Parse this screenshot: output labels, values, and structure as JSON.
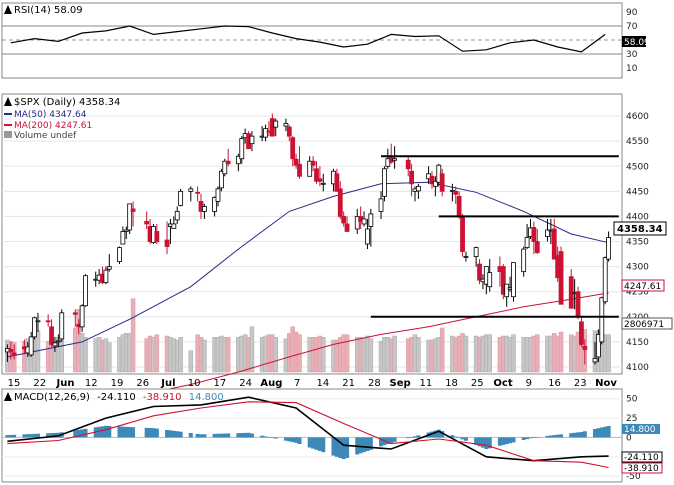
{
  "chart_data": [
    {
      "type": "line",
      "panel": "rsi",
      "label": "RSI(14) 58.09",
      "last_value_label": "58.09",
      "ylim": [
        0,
        100
      ],
      "y_ticks": [
        "90",
        "70",
        "50",
        "30",
        "10"
      ],
      "reference_lines": [
        70,
        50,
        30
      ],
      "series": [
        {
          "color": "#000000",
          "x": [
            "2023-05-11",
            "2023-05-18",
            "2023-05-25",
            "2023-06-01",
            "2023-06-08",
            "2023-06-15",
            "2023-06-22",
            "2023-06-29",
            "2023-07-06",
            "2023-07-13",
            "2023-07-20",
            "2023-07-27",
            "2023-08-03",
            "2023-08-10",
            "2023-08-17",
            "2023-08-24",
            "2023-08-31",
            "2023-09-07",
            "2023-09-14",
            "2023-09-21",
            "2023-09-28",
            "2023-10-05",
            "2023-10-12",
            "2023-10-19",
            "2023-10-26",
            "2023-11-02"
          ],
          "values": [
            46,
            52,
            48,
            60,
            63,
            70,
            58,
            62,
            66,
            70,
            69,
            60,
            52,
            47,
            40,
            44,
            58,
            55,
            56,
            34,
            36,
            46,
            50,
            40,
            33,
            58
          ]
        }
      ]
    },
    {
      "type": "candlestick",
      "panel": "price",
      "label": "$SPX (Daily) 4358.34",
      "last_price_label": "4358.34",
      "ylim": [
        4090,
        4640
      ],
      "y_ticks": [
        "4600",
        "4550",
        "4500",
        "4450",
        "4400",
        "4350",
        "4300",
        "4250",
        "4200",
        "4150",
        "4100"
      ],
      "x_tick_labels": [
        "15",
        "22",
        "Jun",
        "12",
        "19",
        "26",
        "Jul",
        "10",
        "17",
        "24",
        "Aug",
        "7",
        "14",
        "21",
        "28",
        "Sep",
        "11",
        "18",
        "25",
        "Oct",
        "9",
        "16",
        "23",
        "Nov"
      ],
      "legend": [
        {
          "label": "MA(50) 4347.64",
          "color": "#2a2a8c"
        },
        {
          "label": "MA(200) 4247.61",
          "color": "#cc1133"
        },
        {
          "label": "Volume undef",
          "color": "#888888"
        }
      ],
      "value_labels": {
        "ma50": "4347.64",
        "ma200": "4247.61",
        "volume": "2806971"
      },
      "horizontal_levels": [
        {
          "y": 4520,
          "from": "2023-08-28",
          "to": "2023-11-06"
        },
        {
          "y": 4400,
          "from": "2023-09-14",
          "to": "2023-11-06"
        },
        {
          "y": 4200,
          "from": "2023-08-25",
          "to": "2023-11-06"
        }
      ],
      "candles": {
        "x": [
          "2023-05-10",
          "2023-05-11",
          "2023-05-12",
          "2023-05-15",
          "2023-05-16",
          "2023-05-17",
          "2023-05-18",
          "2023-05-19",
          "2023-05-22",
          "2023-05-23",
          "2023-05-24",
          "2023-05-25",
          "2023-05-26",
          "2023-05-30",
          "2023-05-31",
          "2023-06-01",
          "2023-06-02",
          "2023-06-05",
          "2023-06-06",
          "2023-06-07",
          "2023-06-08",
          "2023-06-09",
          "2023-06-12",
          "2023-06-13",
          "2023-06-14",
          "2023-06-15",
          "2023-06-16",
          "2023-06-20",
          "2023-06-21",
          "2023-06-22",
          "2023-06-23",
          "2023-06-26",
          "2023-06-27",
          "2023-06-28",
          "2023-06-29",
          "2023-06-30",
          "2023-07-03",
          "2023-07-05",
          "2023-07-06",
          "2023-07-07",
          "2023-07-10",
          "2023-07-11",
          "2023-07-12",
          "2023-07-13",
          "2023-07-14",
          "2023-07-17",
          "2023-07-18",
          "2023-07-19",
          "2023-07-20",
          "2023-07-21",
          "2023-07-24",
          "2023-07-25",
          "2023-07-26",
          "2023-07-27",
          "2023-07-28",
          "2023-07-31",
          "2023-08-01",
          "2023-08-02",
          "2023-08-03",
          "2023-08-04",
          "2023-08-07",
          "2023-08-08",
          "2023-08-09",
          "2023-08-10",
          "2023-08-11",
          "2023-08-14",
          "2023-08-15",
          "2023-08-16",
          "2023-08-17",
          "2023-08-18",
          "2023-08-21",
          "2023-08-22",
          "2023-08-23",
          "2023-08-24",
          "2023-08-25",
          "2023-08-28",
          "2023-08-29",
          "2023-08-30",
          "2023-08-31",
          "2023-09-01",
          "2023-09-05",
          "2023-09-06",
          "2023-09-07",
          "2023-09-08",
          "2023-09-11",
          "2023-09-12",
          "2023-09-13",
          "2023-09-14",
          "2023-09-15",
          "2023-09-18",
          "2023-09-19",
          "2023-09-20",
          "2023-09-21",
          "2023-09-22",
          "2023-09-25",
          "2023-09-26",
          "2023-09-27",
          "2023-09-28",
          "2023-09-29",
          "2023-10-02",
          "2023-10-03",
          "2023-10-04",
          "2023-10-05",
          "2023-10-06",
          "2023-10-09",
          "2023-10-10",
          "2023-10-11",
          "2023-10-12",
          "2023-10-13",
          "2023-10-16",
          "2023-10-17",
          "2023-10-18",
          "2023-10-19",
          "2023-10-20",
          "2023-10-23",
          "2023-10-24",
          "2023-10-25",
          "2023-10-26",
          "2023-10-27",
          "2023-10-30",
          "2023-10-31",
          "2023-11-01",
          "2023-11-02",
          "2023-11-03"
        ],
        "open": [
          4130,
          4135,
          4128,
          4140,
          4128,
          4124,
          4160,
          4190,
          4192,
          4180,
          4142,
          4150,
          4156,
          4208,
          4185,
          4180,
          4222,
          4274,
          4273,
          4285,
          4268,
          4295,
          4310,
          4345,
          4370,
          4373,
          4415,
          4390,
          4380,
          4348,
          4370,
          4353,
          4380,
          4376,
          4393,
          4422,
          4450,
          4448,
          4430,
          4410,
          4410,
          4430,
          4457,
          4485,
          4510,
          4505,
          4515,
          4557,
          4565,
          4545,
          4560,
          4558,
          4570,
          4595,
          4578,
          4580,
          4578,
          4557,
          4514,
          4504,
          4480,
          4510,
          4495,
          4475,
          4465,
          4465,
          4485,
          4455,
          4400,
          4385,
          4375,
          4400,
          4385,
          4345,
          4380,
          4410,
          4440,
          4500,
          4520,
          4512,
          4512,
          4490,
          4450,
          4451,
          4475,
          4480,
          4460,
          4468,
          4485,
          4450,
          4450,
          4440,
          4400,
          4320,
          4320,
          4305,
          4270,
          4265,
          4260,
          4300,
          4300,
          4240,
          4255,
          4240,
          4290,
          4338,
          4360,
          4378,
          4350,
          4360,
          4373,
          4375,
          4322,
          4330,
          4280,
          4247,
          4250,
          4190,
          4141,
          4110,
          4120,
          4150,
          4230,
          4315
        ],
        "high": [
          4145,
          4150,
          4145,
          4155,
          4150,
          4170,
          4200,
          4208,
          4205,
          4195,
          4160,
          4165,
          4215,
          4215,
          4195,
          4225,
          4285,
          4290,
          4295,
          4300,
          4300,
          4325,
          4340,
          4380,
          4380,
          4425,
          4430,
          4410,
          4395,
          4385,
          4385,
          4390,
          4395,
          4400,
          4420,
          4455,
          4460,
          4460,
          4445,
          4425,
          4440,
          4460,
          4495,
          4515,
          4535,
          4525,
          4560,
          4575,
          4570,
          4570,
          4580,
          4583,
          4590,
          4605,
          4595,
          4595,
          4582,
          4560,
          4525,
          4540,
          4520,
          4520,
          4510,
          4500,
          4485,
          4495,
          4495,
          4470,
          4410,
          4400,
          4415,
          4420,
          4410,
          4395,
          4415,
          4450,
          4500,
          4535,
          4545,
          4540,
          4520,
          4505,
          4460,
          4465,
          4500,
          4490,
          4480,
          4505,
          4495,
          4465,
          4460,
          4450,
          4405,
          4330,
          4340,
          4315,
          4285,
          4285,
          4315,
          4320,
          4305,
          4265,
          4280,
          4300,
          4340,
          4385,
          4395,
          4390,
          4375,
          4395,
          4395,
          4395,
          4340,
          4340,
          4295,
          4275,
          4260,
          4200,
          4155,
          4150,
          4175,
          4240,
          4320,
          4370
        ],
        "low": [
          4110,
          4115,
          4115,
          4125,
          4120,
          4120,
          4155,
          4170,
          4180,
          4140,
          4130,
          4140,
          4150,
          4180,
          4165,
          4170,
          4220,
          4260,
          4265,
          4265,
          4265,
          4290,
          4305,
          4345,
          4355,
          4365,
          4380,
          4375,
          4345,
          4345,
          4345,
          4325,
          4345,
          4375,
          4385,
          4420,
          4430,
          4430,
          4395,
          4395,
          4400,
          4420,
          4450,
          4480,
          4500,
          4490,
          4505,
          4545,
          4535,
          4530,
          4550,
          4550,
          4560,
          4565,
          4560,
          4570,
          4550,
          4500,
          4495,
          4475,
          4480,
          4490,
          4465,
          4460,
          4450,
          4450,
          4450,
          4395,
          4380,
          4370,
          4365,
          4375,
          4380,
          4335,
          4340,
          4395,
          4430,
          4495,
          4505,
          4495,
          4480,
          4440,
          4430,
          4435,
          4465,
          4455,
          4440,
          4460,
          4440,
          4430,
          4425,
          4395,
          4320,
          4310,
          4300,
          4265,
          4255,
          4245,
          4250,
          4260,
          4235,
          4220,
          4250,
          4230,
          4280,
          4335,
          4355,
          4325,
          4325,
          4350,
          4345,
          4315,
          4270,
          4245,
          4220,
          4215,
          4195,
          4140,
          4105,
          4105,
          4110,
          4145,
          4225,
          4310
        ],
        "close": [
          4137,
          4130,
          4124,
          4136,
          4140,
          4160,
          4198,
          4192,
          4190,
          4145,
          4148,
          4152,
          4208,
          4205,
          4180,
          4222,
          4282,
          4275,
          4283,
          4268,
          4293,
          4300,
          4338,
          4370,
          4373,
          4425,
          4410,
          4385,
          4350,
          4380,
          4350,
          4340,
          4385,
          4385,
          4410,
          4450,
          4455,
          4447,
          4410,
          4420,
          4438,
          4455,
          4490,
          4510,
          4505,
          4520,
          4555,
          4565,
          4535,
          4560,
          4560,
          4575,
          4568,
          4560,
          4590,
          4585,
          4560,
          4515,
          4502,
          4480,
          4510,
          4502,
          4470,
          4470,
          4466,
          4490,
          4450,
          4400,
          4387,
          4370,
          4400,
          4390,
          4395,
          4375,
          4405,
          4435,
          4495,
          4515,
          4508,
          4515,
          4495,
          4465,
          4455,
          4460,
          4485,
          4465,
          4470,
          4502,
          4450,
          4452,
          4444,
          4400,
          4330,
          4320,
          4338,
          4273,
          4275,
          4300,
          4288,
          4290,
          4245,
          4265,
          4258,
          4308,
          4335,
          4358,
          4377,
          4350,
          4328,
          4373,
          4373,
          4315,
          4278,
          4225,
          4217,
          4248,
          4200,
          4145,
          4135,
          4117,
          4165,
          4238,
          4318,
          4358
        ]
      },
      "volume": {
        "unit": "shares",
        "values": [
          2.4,
          2.3,
          2.2,
          2.3,
          2.5,
          2.4,
          2.6,
          3.1,
          2.3,
          2.5,
          2.3,
          2.6,
          2.8,
          3.3,
          4.7,
          2.9,
          2.6,
          2.5,
          2.6,
          2.4,
          2.5,
          2.2,
          2.6,
          2.8,
          2.9,
          2.9,
          5.5,
          2.5,
          2.7,
          2.6,
          2.8,
          2.7,
          2.6,
          2.5,
          2.4,
          2.6,
          1.6,
          2.8,
          2.6,
          2.4,
          2.6,
          2.6,
          2.7,
          2.6,
          2.6,
          2.6,
          2.7,
          2.8,
          2.6,
          3.4,
          2.6,
          2.7,
          2.8,
          2.8,
          2.6,
          2.5,
          2.9,
          3.4,
          3.0,
          2.8,
          2.6,
          2.6,
          2.6,
          2.7,
          2.6,
          2.4,
          2.4,
          2.6,
          2.8,
          2.8,
          2.6,
          2.6,
          2.5,
          2.7,
          2.5,
          2.3,
          2.6,
          2.6,
          2.5,
          2.7,
          2.5,
          2.6,
          2.8,
          2.6,
          2.4,
          2.4,
          2.5,
          2.6,
          3.3,
          2.7,
          2.6,
          2.7,
          2.9,
          2.7,
          2.7,
          2.6,
          2.7,
          2.8,
          2.8,
          2.6,
          2.7,
          2.7,
          2.6,
          2.8,
          2.6,
          2.6,
          2.6,
          2.7,
          2.8,
          2.7,
          2.7,
          2.9,
          2.7,
          3.0,
          2.8,
          2.7,
          3.0,
          3.1,
          3.2,
          3.1,
          3.1,
          2.9,
          2.8,
          2.8
        ]
      },
      "moving_averages": {
        "ma50": {
          "x": [
            "2023-05-10",
            "2023-06-01",
            "2023-06-15",
            "2023-07-03",
            "2023-07-17",
            "2023-08-01",
            "2023-08-14",
            "2023-08-28",
            "2023-09-11",
            "2023-09-25",
            "2023-10-09",
            "2023-10-23",
            "2023-11-03"
          ],
          "values": [
            4120,
            4150,
            4195,
            4260,
            4335,
            4410,
            4440,
            4465,
            4468,
            4448,
            4410,
            4365,
            4347.64
          ]
        },
        "ma200": {
          "x": [
            "2023-05-10",
            "2023-06-01",
            "2023-06-15",
            "2023-07-03",
            "2023-07-17",
            "2023-08-01",
            "2023-08-14",
            "2023-08-28",
            "2023-09-11",
            "2023-09-25",
            "2023-10-09",
            "2023-10-23",
            "2023-11-03"
          ],
          "values": [
            4010,
            4020,
            4040,
            4065,
            4090,
            4120,
            4145,
            4165,
            4180,
            4200,
            4220,
            4235,
            4247.61
          ]
        }
      }
    },
    {
      "type": "line",
      "panel": "macd",
      "label": "MACD(12,26,9)",
      "label_values": [
        "-24.110",
        "-38.910",
        "14.800"
      ],
      "ylim": [
        -55,
        60
      ],
      "y_ticks": [
        "50",
        "25",
        "0",
        "-25",
        "-50"
      ],
      "series": [
        {
          "color": "#000000",
          "x": [
            "2023-05-10",
            "2023-05-25",
            "2023-06-08",
            "2023-06-22",
            "2023-07-06",
            "2023-07-20",
            "2023-08-03",
            "2023-08-17",
            "2023-08-31",
            "2023-09-14",
            "2023-09-28",
            "2023-10-12",
            "2023-10-26",
            "2023-11-03"
          ],
          "values": [
            -5,
            2,
            25,
            40,
            42,
            52,
            38,
            -10,
            -15,
            8,
            -25,
            -30,
            -25,
            -24.11
          ]
        },
        {
          "color": "#cc1133",
          "x": [
            "2023-05-10",
            "2023-05-25",
            "2023-06-08",
            "2023-06-22",
            "2023-07-06",
            "2023-07-20",
            "2023-08-03",
            "2023-08-17",
            "2023-08-31",
            "2023-09-14",
            "2023-09-28",
            "2023-10-12",
            "2023-10-26",
            "2023-11-03"
          ],
          "values": [
            -8,
            -4,
            10,
            28,
            38,
            46,
            45,
            18,
            -8,
            -2,
            -10,
            -30,
            -32,
            -38.91
          ]
        },
        {
          "color": "#3d8ab8",
          "x": [
            "2023-05-10",
            "2023-05-25",
            "2023-06-08",
            "2023-06-22",
            "2023-07-06",
            "2023-07-20",
            "2023-08-03",
            "2023-08-17",
            "2023-08-31",
            "2023-09-14",
            "2023-09-28",
            "2023-10-12",
            "2023-10-26",
            "2023-11-03"
          ],
          "values": [
            3,
            6,
            15,
            12,
            4,
            6,
            -7,
            -28,
            -7,
            10,
            -15,
            0,
            7,
            14.8
          ]
        }
      ]
    }
  ]
}
